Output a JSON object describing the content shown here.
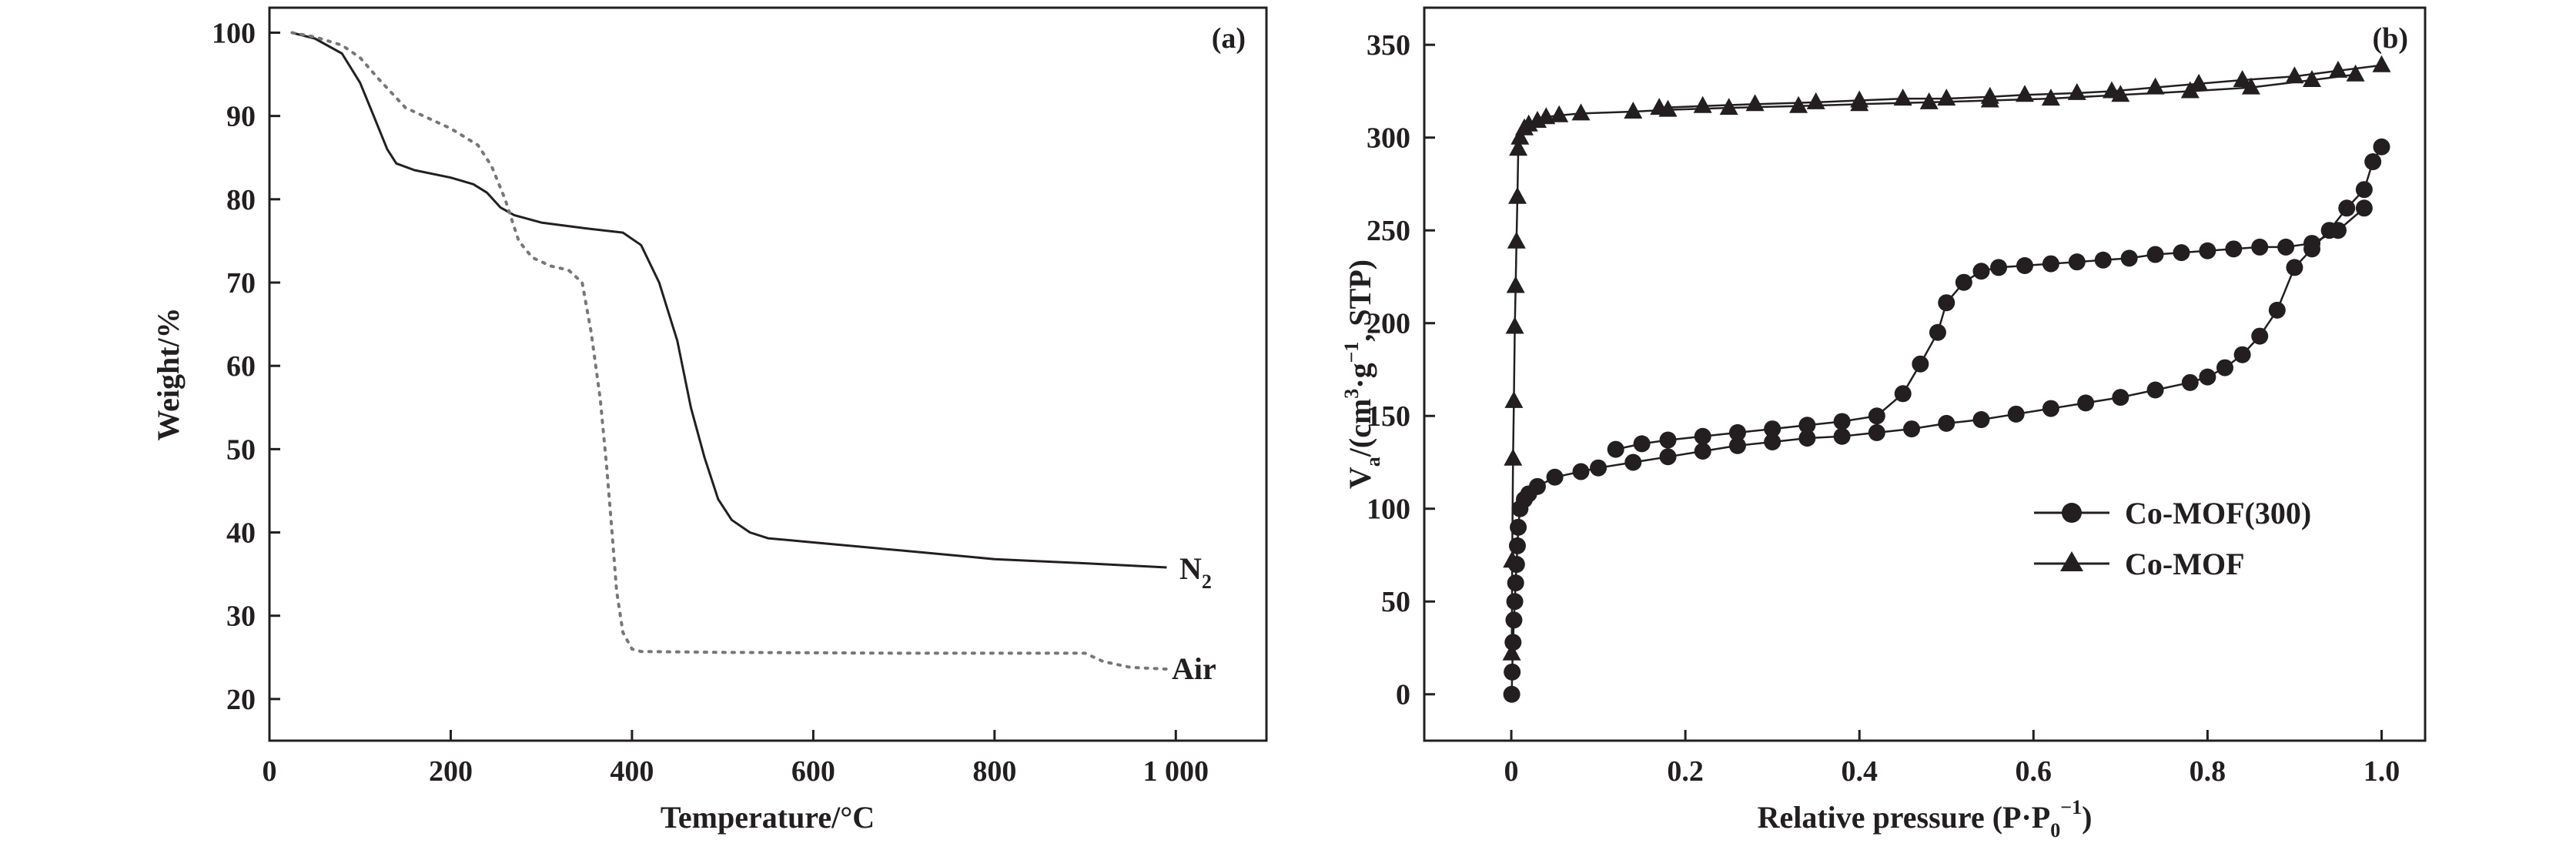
{
  "colors": {
    "ink": "#231f20",
    "air_line": "#777777",
    "background": "#ffffff"
  },
  "chart_data": [
    {
      "panel": "(a)",
      "type": "line",
      "xlabel": "Temperature/°C",
      "ylabel": "Weight/%",
      "xlim": [
        0,
        1100
      ],
      "ylim": [
        15,
        103
      ],
      "xticks": [
        0,
        200,
        400,
        600,
        800,
        1000
      ],
      "xtick_labels": [
        "0",
        "200",
        "400",
        "600",
        "800",
        "1 000"
      ],
      "yticks": [
        20,
        30,
        40,
        50,
        60,
        70,
        80,
        90,
        100
      ],
      "ytick_labels": [
        "20",
        "30",
        "40",
        "50",
        "60",
        "70",
        "80",
        "90",
        "100"
      ],
      "grid": false,
      "series": [
        {
          "name": "N",
          "name_subscript": "2",
          "style": "solid",
          "x": [
            25,
            50,
            80,
            100,
            115,
            130,
            140,
            160,
            200,
            225,
            240,
            255,
            270,
            300,
            350,
            390,
            410,
            430,
            450,
            465,
            480,
            495,
            510,
            530,
            550,
            600,
            700,
            800,
            900,
            990
          ],
          "y": [
            100,
            99.3,
            97.5,
            94,
            90,
            86,
            84.3,
            83.5,
            82.6,
            81.8,
            80.8,
            79,
            78.1,
            77.2,
            76.5,
            76,
            74.5,
            70,
            63,
            55,
            49,
            44,
            41.5,
            40,
            39.3,
            38.8,
            37.8,
            36.8,
            36.3,
            35.8
          ]
        },
        {
          "name": "Air",
          "style": "dotted",
          "x": [
            25,
            50,
            80,
            100,
            120,
            150,
            200,
            230,
            245,
            260,
            275,
            290,
            310,
            330,
            345,
            355,
            365,
            372,
            378,
            383,
            390,
            400,
            410,
            500,
            700,
            900,
            920,
            950,
            990
          ],
          "y": [
            100,
            99.5,
            98.5,
            97,
            94.5,
            91,
            88.5,
            86.5,
            84,
            80,
            75,
            73,
            72,
            71.5,
            70,
            64,
            56,
            48,
            40,
            33,
            28,
            26,
            25.7,
            25.6,
            25.5,
            25.5,
            24.5,
            23.8,
            23.6
          ]
        }
      ],
      "annotations": []
    },
    {
      "panel": "(b)",
      "type": "line",
      "xlabel": "Relative pressure (P·P",
      "xlabel_subscript": "0",
      "xlabel_superscript": "−1",
      "xlabel_tail": ")",
      "ylabel": "V",
      "ylabel_subscript": "a",
      "ylabel_mid": "/(cm",
      "ylabel_sup1": "3",
      "ylabel_mid2": "·g",
      "ylabel_sup2": "−1",
      "ylabel_tail": ", STP)",
      "xlim": [
        -0.1,
        1.05
      ],
      "ylim": [
        -25,
        370
      ],
      "xticks": [
        0,
        0.2,
        0.4,
        0.6,
        0.8,
        1.0
      ],
      "xtick_labels": [
        "0",
        "0.2",
        "0.4",
        "0.6",
        "0.8",
        "1.0"
      ],
      "yticks": [
        0,
        50,
        100,
        150,
        200,
        250,
        300,
        350
      ],
      "ytick_labels": [
        "0",
        "50",
        "100",
        "150",
        "200",
        "250",
        "300",
        "350"
      ],
      "grid": false,
      "legend_position": "lower-right",
      "series": [
        {
          "name": "Co-MOF(300)",
          "marker": "circle",
          "adsorption": {
            "x": [
              0.0005,
              0.001,
              0.002,
              0.003,
              0.004,
              0.005,
              0.006,
              0.007,
              0.008,
              0.01,
              0.015,
              0.02,
              0.03,
              0.05,
              0.08,
              0.1,
              0.14,
              0.18,
              0.22,
              0.26,
              0.3,
              0.34,
              0.38,
              0.42,
              0.46,
              0.5,
              0.54,
              0.58,
              0.62,
              0.66,
              0.7,
              0.74,
              0.78,
              0.8,
              0.82,
              0.84,
              0.86,
              0.88,
              0.9,
              0.92,
              0.94,
              0.96,
              0.98,
              0.99,
              1.0
            ],
            "y": [
              0,
              12,
              28,
              40,
              50,
              60,
              70,
              80,
              90,
              100,
              105,
              108,
              112,
              117,
              120,
              122,
              125,
              128,
              131,
              134,
              136,
              138,
              139,
              141,
              143,
              146,
              148,
              151,
              154,
              157,
              160,
              164,
              168,
              171,
              176,
              183,
              193,
              207,
              230,
              240,
              250,
              262,
              272,
              287,
              295
            ]
          },
          "desorption": {
            "x": [
              0.98,
              0.95,
              0.92,
              0.89,
              0.86,
              0.83,
              0.8,
              0.77,
              0.74,
              0.71,
              0.68,
              0.65,
              0.62,
              0.59,
              0.56,
              0.54,
              0.52,
              0.5,
              0.49,
              0.47,
              0.45,
              0.42,
              0.38,
              0.34,
              0.3,
              0.26,
              0.22,
              0.18,
              0.15,
              0.12
            ],
            "y": [
              262,
              250,
              243,
              241,
              241,
              240,
              239,
              238,
              237,
              235,
              234,
              233,
              232,
              231,
              230,
              228,
              222,
              211,
              195,
              178,
              162,
              150,
              147,
              145,
              143,
              141,
              139,
              137,
              135,
              132
            ]
          }
        },
        {
          "name": "Co-MOF",
          "marker": "triangle",
          "adsorption": {
            "x": [
              0.0005,
              0.001,
              0.002,
              0.003,
              0.004,
              0.005,
              0.006,
              0.007,
              0.008,
              0.01,
              0.015,
              0.02,
              0.03,
              0.04,
              0.055,
              0.08,
              0.14,
              0.18,
              0.25,
              0.33,
              0.4,
              0.48,
              0.55,
              0.62,
              0.7,
              0.78,
              0.85,
              0.92,
              0.97
            ],
            "y": [
              22,
              72,
              127,
              158,
              198,
              220,
              244,
              268,
              294,
              300,
              305,
              307,
              309,
              311,
              312,
              313,
              314,
              315,
              316,
              317,
              318,
              319,
              320,
              321,
              323,
              325,
              327,
              331,
              334
            ]
          },
          "desorption": {
            "x": [
              1.0,
              0.95,
              0.9,
              0.84,
              0.79,
              0.74,
              0.69,
              0.65,
              0.59,
              0.55,
              0.5,
              0.45,
              0.4,
              0.35,
              0.28,
              0.22,
              0.17
            ],
            "y": [
              339,
              336,
              333,
              331,
              329,
              327,
              325,
              324,
              323,
              322,
              321,
              321,
              320,
              319,
              318,
              317,
              316
            ]
          }
        }
      ],
      "annotations": []
    }
  ]
}
